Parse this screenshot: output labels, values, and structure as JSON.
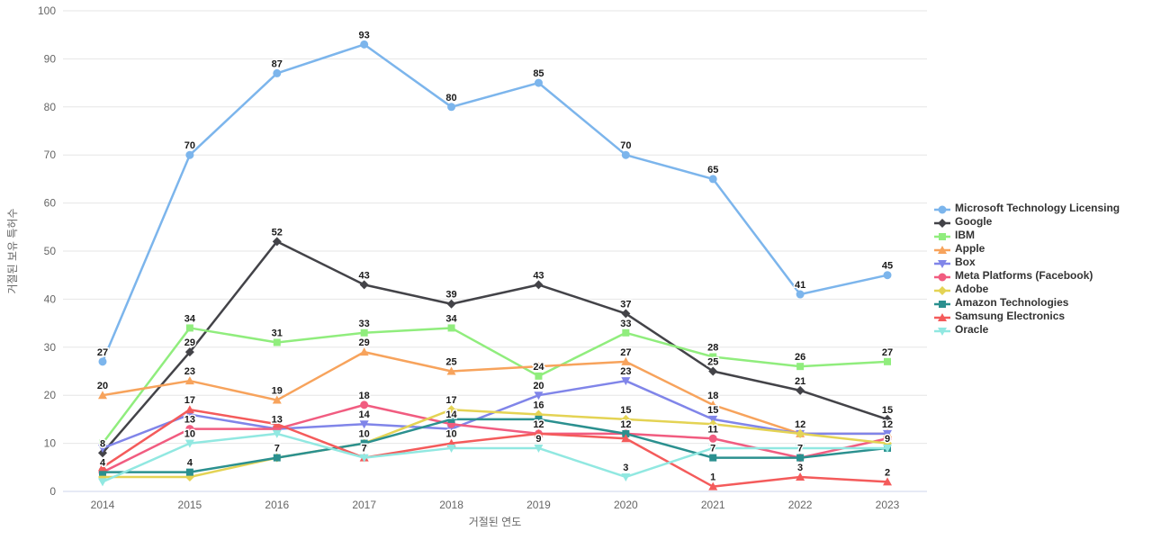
{
  "chart_data": {
    "type": "line",
    "title": "",
    "xlabel": "거절된 연도",
    "ylabel": "거절된 보유 특허수",
    "x": [
      2014,
      2015,
      2016,
      2017,
      2018,
      2019,
      2020,
      2021,
      2022,
      2023
    ],
    "ylim": [
      0,
      100
    ],
    "y_tick_step": 10,
    "grid": true,
    "legend_position": "right",
    "colors": {
      "grid": "#e6e6e6",
      "axis_line": "#ccd6eb",
      "tick_label": "#666666",
      "axis_title": "#666666",
      "data_label": "#1a1a1a",
      "legend_text": "#333333",
      "background": "#ffffff"
    },
    "series": [
      {
        "name": "Microsoft Technology Licensing",
        "color": "#7cb5ec",
        "marker": "circle",
        "values": [
          27,
          70,
          87,
          93,
          80,
          85,
          70,
          65,
          41,
          45
        ],
        "label_flags": [
          1,
          1,
          1,
          1,
          1,
          1,
          1,
          1,
          1,
          1
        ]
      },
      {
        "name": "Google",
        "color": "#434348",
        "marker": "diamond",
        "values": [
          8,
          29,
          52,
          43,
          39,
          43,
          37,
          25,
          21,
          15
        ],
        "label_flags": [
          1,
          1,
          1,
          1,
          1,
          1,
          1,
          1,
          1,
          1
        ]
      },
      {
        "name": "IBM",
        "color": "#90ed7d",
        "marker": "square",
        "values": [
          10,
          34,
          31,
          33,
          34,
          24,
          33,
          28,
          26,
          27
        ],
        "label_flags": [
          0,
          1,
          1,
          1,
          1,
          1,
          1,
          1,
          1,
          1
        ]
      },
      {
        "name": "Apple",
        "color": "#f7a35c",
        "marker": "triangle",
        "values": [
          20,
          23,
          19,
          29,
          25,
          26,
          27,
          18,
          12,
          12
        ],
        "label_flags": [
          1,
          1,
          1,
          1,
          1,
          0,
          1,
          1,
          1,
          1
        ]
      },
      {
        "name": "Box",
        "color": "#8085e9",
        "marker": "triangle-down",
        "values": [
          9,
          16,
          13,
          14,
          13,
          20,
          23,
          15,
          12,
          12
        ],
        "label_flags": [
          0,
          0,
          0,
          1,
          0,
          1,
          1,
          1,
          0,
          0
        ]
      },
      {
        "name": "Meta Platforms (Facebook)",
        "color": "#f15c80",
        "marker": "circle",
        "values": [
          4,
          13,
          13,
          18,
          14,
          12,
          12,
          11,
          7,
          11
        ],
        "label_flags": [
          0,
          1,
          1,
          1,
          1,
          1,
          0,
          1,
          0,
          0
        ]
      },
      {
        "name": "Adobe",
        "color": "#e4d354",
        "marker": "diamond",
        "values": [
          3,
          3,
          7,
          10,
          17,
          16,
          15,
          14,
          12,
          10
        ],
        "label_flags": [
          0,
          0,
          0,
          0,
          1,
          1,
          1,
          0,
          0,
          0
        ]
      },
      {
        "name": "Amazon Technologies",
        "color": "#2b908f",
        "marker": "square",
        "values": [
          4,
          4,
          7,
          10,
          15,
          15,
          12,
          7,
          7,
          9
        ],
        "label_flags": [
          1,
          1,
          1,
          1,
          0,
          0,
          1,
          1,
          1,
          1
        ]
      },
      {
        "name": "Samsung Electronics",
        "color": "#f45b5b",
        "marker": "triangle",
        "values": [
          5,
          17,
          14,
          7,
          10,
          12,
          11,
          1,
          3,
          2
        ],
        "label_flags": [
          0,
          1,
          0,
          0,
          1,
          0,
          0,
          1,
          1,
          1
        ]
      },
      {
        "name": "Oracle",
        "color": "#91e8e1",
        "marker": "triangle-down",
        "values": [
          2,
          10,
          12,
          7,
          9,
          9,
          3,
          9,
          9,
          9
        ],
        "label_flags": [
          0,
          1,
          0,
          1,
          0,
          1,
          1,
          0,
          0,
          0
        ]
      }
    ]
  }
}
